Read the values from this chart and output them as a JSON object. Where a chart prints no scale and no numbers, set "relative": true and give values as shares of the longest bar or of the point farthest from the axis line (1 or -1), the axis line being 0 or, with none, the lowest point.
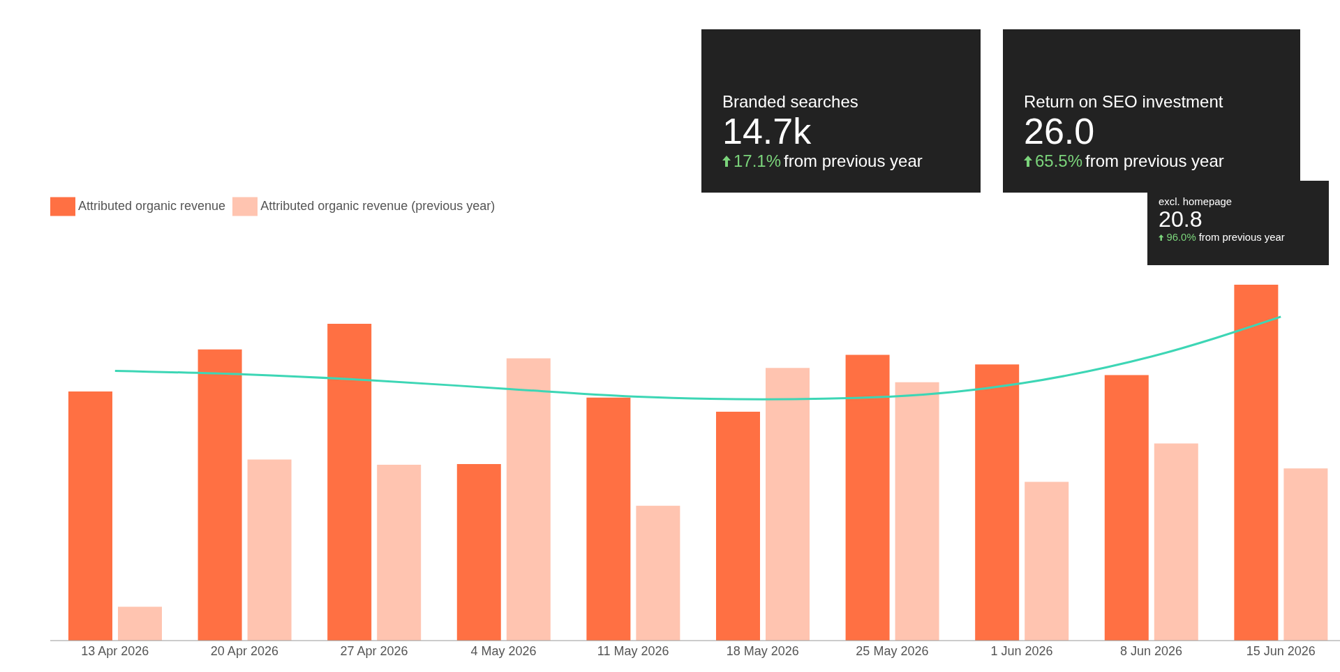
{
  "chart_data": [
    {
      "type": "other",
      "title": "Branded searches",
      "annotations": [
        "14.7k",
        "17.1%",
        "from previous year"
      ]
    },
    {
      "type": "other",
      "title": "Return on SEO investment",
      "annotations": [
        "26.0",
        "65.5%",
        "from previous year"
      ]
    },
    {
      "type": "other",
      "title": "excl. homepage",
      "annotations": [
        "20.8",
        "96.0%",
        "from previous year"
      ]
    },
    {
      "type": "bar",
      "relative": true,
      "legend": "top left",
      "grid": false,
      "categories": [
        "13 Apr 2026",
        "20 Apr 2026",
        "27 Apr 2026",
        "4 May 2026",
        "11 May 2026",
        "18 May 2026",
        "25 May 2026",
        "1 Jun 2026",
        "8 Jun 2026",
        "15 Jun 2026"
      ],
      "series": [
        {
          "name": "Attributed organic revenue",
          "color": "#ff7043",
          "values": [
            0.7,
            0.818,
            0.89,
            0.496,
            0.683,
            0.643,
            0.803,
            0.776,
            0.746,
            1
          ]
        },
        {
          "name": "Attributed organic revenue (previous year)",
          "color": "#ffc4b0",
          "values": [
            0.095,
            0.509,
            0.494,
            0.793,
            0.379,
            0.766,
            0.726,
            0.446,
            0.554,
            0.484
          ]
        },
        {
          "type": "line",
          "color": "#3dd6b5",
          "values": [
            0.758,
            0.748,
            0.731,
            0.708,
            0.686,
            0.678,
            0.686,
            0.723,
            0.798,
            0.91
          ]
        }
      ]
    }
  ]
}
